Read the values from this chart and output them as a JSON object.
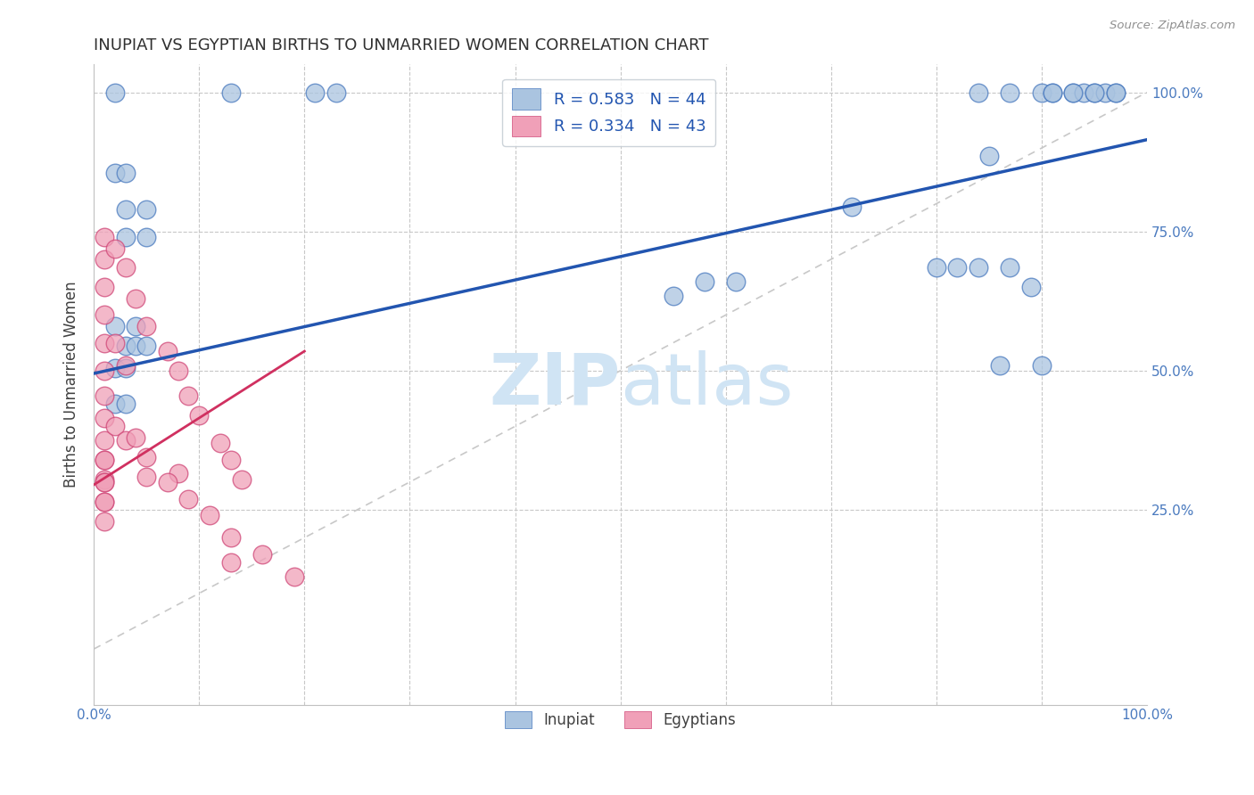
{
  "title": "INUPIAT VS EGYPTIAN BIRTHS TO UNMARRIED WOMEN CORRELATION CHART",
  "source": "Source: ZipAtlas.com",
  "ylabel": "Births to Unmarried Women",
  "legend_label1": "Inupiat",
  "legend_label2": "Egyptians",
  "R1": 0.583,
  "N1": 44,
  "R2": 0.334,
  "N2": 43,
  "xlim": [
    0.0,
    1.0
  ],
  "ylim": [
    -0.1,
    1.05
  ],
  "ytick_positions": [
    0.25,
    0.5,
    0.75,
    1.0
  ],
  "ytick_labels": [
    "25.0%",
    "50.0%",
    "75.0%",
    "100.0%"
  ],
  "color_inupiat": "#aac4e0",
  "color_inupiat_edge": "#4a7abf",
  "color_egyptians": "#f0a0b8",
  "color_egyptians_edge": "#d04878",
  "color_inupiat_line": "#2255b0",
  "color_egyptians_line": "#d03060",
  "color_ref_line": "#c8c8c8",
  "grid_color": "#c8c8c8",
  "background_color": "#ffffff",
  "title_color": "#303030",
  "axis_label_color": "#404040",
  "tick_label_color": "#4a7abf",
  "text_color_blue": "#2255b0",
  "watermark_color": "#d0e4f4",
  "inupiat_x": [
    0.02,
    0.13,
    0.21,
    0.23,
    0.02,
    0.03,
    0.03,
    0.05,
    0.03,
    0.05,
    0.02,
    0.04,
    0.03,
    0.04,
    0.05,
    0.02,
    0.03,
    0.02,
    0.03,
    0.55,
    0.58,
    0.61,
    0.72,
    0.8,
    0.82,
    0.84,
    0.87,
    0.9,
    0.91,
    0.93,
    0.94,
    0.95,
    0.96,
    0.97,
    0.91,
    0.93,
    0.95,
    0.97,
    0.85,
    0.84,
    0.87,
    0.86,
    0.89,
    0.9
  ],
  "inupiat_y": [
    1.0,
    1.0,
    1.0,
    1.0,
    0.855,
    0.855,
    0.79,
    0.79,
    0.74,
    0.74,
    0.58,
    0.58,
    0.545,
    0.545,
    0.545,
    0.505,
    0.505,
    0.44,
    0.44,
    0.635,
    0.66,
    0.66,
    0.795,
    0.685,
    0.685,
    1.0,
    1.0,
    1.0,
    1.0,
    1.0,
    1.0,
    1.0,
    1.0,
    1.0,
    1.0,
    1.0,
    1.0,
    1.0,
    0.885,
    0.685,
    0.685,
    0.51,
    0.65,
    0.51
  ],
  "egyptians_x": [
    0.01,
    0.01,
    0.01,
    0.01,
    0.01,
    0.01,
    0.01,
    0.01,
    0.01,
    0.01,
    0.01,
    0.01,
    0.01,
    0.01,
    0.01,
    0.01,
    0.01,
    0.02,
    0.02,
    0.02,
    0.03,
    0.03,
    0.03,
    0.04,
    0.04,
    0.05,
    0.05,
    0.07,
    0.08,
    0.08,
    0.09,
    0.1,
    0.12,
    0.13,
    0.13,
    0.14,
    0.05,
    0.07,
    0.09,
    0.11,
    0.13,
    0.16,
    0.19
  ],
  "egyptians_y": [
    0.74,
    0.7,
    0.65,
    0.6,
    0.55,
    0.5,
    0.455,
    0.415,
    0.375,
    0.34,
    0.305,
    0.265,
    0.23,
    0.3,
    0.34,
    0.265,
    0.3,
    0.72,
    0.55,
    0.4,
    0.685,
    0.51,
    0.375,
    0.63,
    0.38,
    0.58,
    0.345,
    0.535,
    0.5,
    0.315,
    0.455,
    0.42,
    0.37,
    0.34,
    0.155,
    0.305,
    0.31,
    0.3,
    0.27,
    0.24,
    0.2,
    0.17,
    0.13
  ],
  "inupiat_line_x": [
    0.0,
    1.0
  ],
  "inupiat_line_y": [
    0.495,
    0.915
  ],
  "egyptians_line_x": [
    0.0,
    0.2
  ],
  "egyptians_line_y": [
    0.295,
    0.535
  ],
  "ref_line_x": [
    0.0,
    1.0
  ],
  "ref_line_y": [
    0.0,
    1.0
  ]
}
